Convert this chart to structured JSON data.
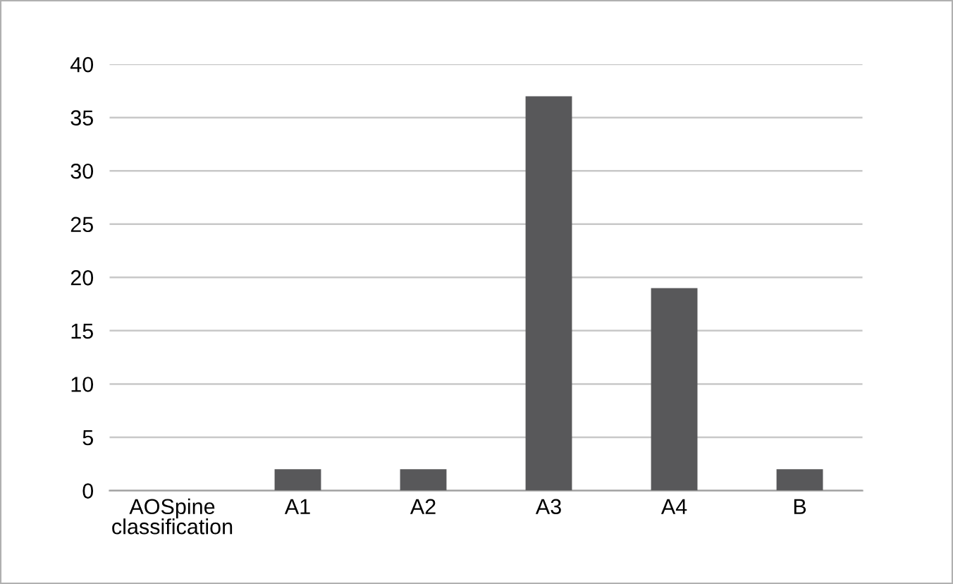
{
  "chart_data": {
    "type": "bar",
    "categories": [
      "AOSpine\nclassification",
      "A1",
      "A2",
      "A3",
      "A4",
      "B"
    ],
    "values": [
      null,
      2,
      2,
      37,
      19,
      2
    ],
    "color": "#58585a",
    "ylim": [
      0,
      40
    ],
    "yticks": [
      0,
      5,
      10,
      15,
      20,
      25,
      30,
      35,
      40
    ],
    "grid": "y",
    "legend": false
  }
}
